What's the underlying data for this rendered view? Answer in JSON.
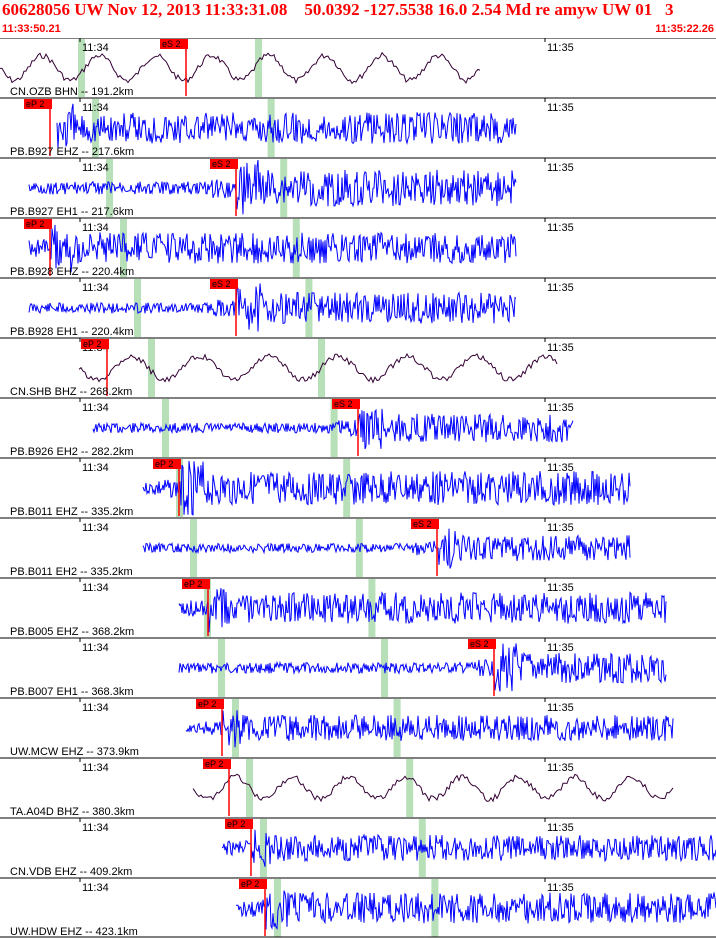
{
  "header": {
    "title": "60628056 UW Nov 12, 2013 11:33:31.08    50.0392 -127.5538 16.0 2.54 Md re amyw UW 01   3",
    "start_time": "11:33:50.21",
    "end_time": "11:35:22.26"
  },
  "colors": {
    "header_text": "#ff0000",
    "phase_box": "#ff0000",
    "pick_line": "#ff0000",
    "short_period_trace": "#0000ff",
    "broadband_trace": "#330033",
    "minute_band": "#b8e0b8",
    "separator": "#000000"
  },
  "chart_data": {
    "type": "line",
    "title": "60628056 UW Nov 12, 2013 11:33:31.08    50.0392 -127.5538 16.0 2.54 Md re amyw UW 01   3",
    "time_window": [
      "11:33:50.21",
      "11:35:22.26"
    ],
    "minute_ticks": [
      "11:34",
      "11:35"
    ],
    "traces": [
      {
        "label": "CN.OZB BHN -- 191.2km",
        "type": "broadband",
        "phase": "eS 2",
        "start": 0.0,
        "end": 0.67,
        "pick": 0.26,
        "amp": 0.8
      },
      {
        "label": "PB.B927 EHZ -- 217.6km",
        "type": "short",
        "phase": "eP 2",
        "start": 0.08,
        "end": 0.72,
        "pick": 0.07,
        "amp": 0.6
      },
      {
        "label": "PB.B927 EH1 -- 217.6km",
        "type": "short",
        "phase": "eS 2",
        "start": 0.04,
        "end": 0.72,
        "pick": 0.33,
        "amp": 0.7
      },
      {
        "label": "PB.B928 EHZ -- 220.4km",
        "type": "short",
        "phase": "eP 2",
        "start": 0.04,
        "end": 0.72,
        "pick": 0.07,
        "amp": 0.6
      },
      {
        "label": "PB.B928 EH1 -- 220.4km",
        "type": "short",
        "phase": "eS 2",
        "start": 0.04,
        "end": 0.72,
        "pick": 0.33,
        "amp": 0.6
      },
      {
        "label": "CN.SHB BHZ -- 268.2km",
        "type": "broadband",
        "phase": "eP 2",
        "start": 0.11,
        "end": 0.78,
        "pick": 0.15,
        "amp": 0.75
      },
      {
        "label": "PB.B926 EH2 -- 282.2km",
        "type": "short",
        "phase": "eS 2",
        "start": 0.13,
        "end": 0.8,
        "pick": 0.5,
        "amp": 0.55
      },
      {
        "label": "PB.B011 EHZ -- 335.2km",
        "type": "short",
        "phase": "eP 2",
        "start": 0.2,
        "end": 0.88,
        "pick": 0.25,
        "amp": 0.65
      },
      {
        "label": "PB.B011 EH2 -- 335.2km",
        "type": "short",
        "phase": "eS 2",
        "start": 0.2,
        "end": 0.88,
        "pick": 0.61,
        "amp": 0.5
      },
      {
        "label": "PB.B005 EHZ -- 368.2km",
        "type": "short",
        "phase": "eP 2",
        "start": 0.25,
        "end": 0.93,
        "pick": 0.29,
        "amp": 0.6
      },
      {
        "label": "PB.B007 EH1 -- 368.3km",
        "type": "short",
        "phase": "eS 2",
        "start": 0.25,
        "end": 0.93,
        "pick": 0.69,
        "amp": 0.6
      },
      {
        "label": "UW.MCW EHZ -- 373.9km",
        "type": "short",
        "phase": "eP 2",
        "start": 0.26,
        "end": 0.94,
        "pick": 0.31,
        "amp": 0.5
      },
      {
        "label": "TA.A04D BHZ -- 380.3km",
        "type": "broadband",
        "phase": "eP 2",
        "start": 0.27,
        "end": 0.94,
        "pick": 0.32,
        "amp": 0.7
      },
      {
        "label": "CN.VDB EHZ -- 409.2km",
        "type": "short",
        "phase": "eP 2",
        "start": 0.31,
        "end": 1.0,
        "pick": 0.35,
        "amp": 0.5
      },
      {
        "label": "UW.HDW EHZ -- 423.1km",
        "type": "short",
        "phase": "eP 2",
        "start": 0.33,
        "end": 1.0,
        "pick": 0.37,
        "amp": 0.6
      }
    ]
  }
}
